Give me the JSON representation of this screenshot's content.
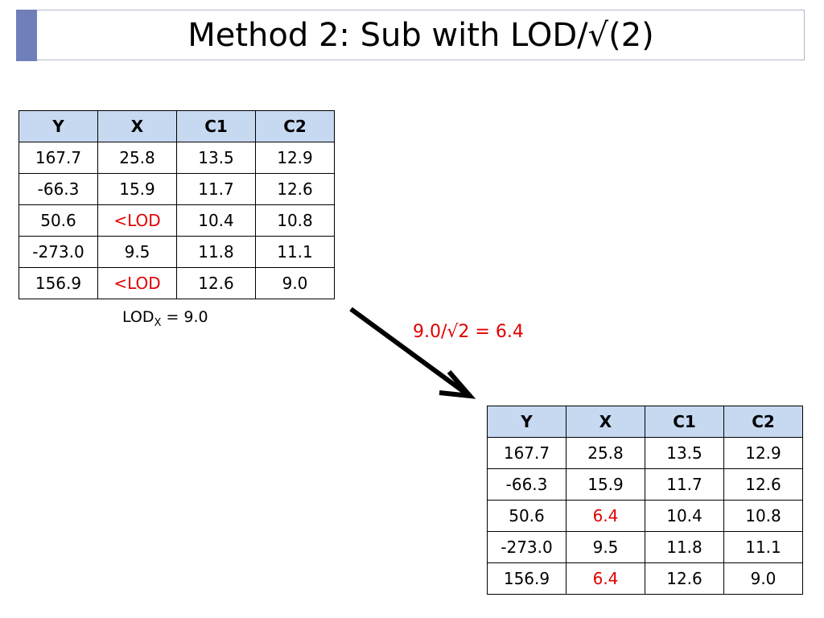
{
  "title": "Method 2: Sub with LOD/√(2)",
  "table_before": {
    "header": [
      "Y",
      "X",
      "C1",
      "C2"
    ],
    "rows": [
      [
        "167.7",
        "25.8",
        "13.5",
        "12.9"
      ],
      [
        "-66.3",
        "15.9",
        "11.7",
        "12.6"
      ],
      [
        "50.6",
        "<LOD",
        "10.4",
        "10.8"
      ],
      [
        "-273.0",
        "9.5",
        "11.8",
        "11.1"
      ],
      [
        "156.9",
        "<LOD",
        "12.6",
        "9.0"
      ]
    ]
  },
  "lod_note": {
    "base": "LOD",
    "subscript": "X",
    "rest": " = 9.0"
  },
  "annotation": "9.0/√2 = 6.4",
  "table_after": {
    "header": [
      "Y",
      "X",
      "C1",
      "C2"
    ],
    "rows": [
      [
        "167.7",
        "25.8",
        "13.5",
        "12.9"
      ],
      [
        "-66.3",
        "15.9",
        "11.7",
        "12.6"
      ],
      [
        "50.6",
        "6.4",
        "10.4",
        "10.8"
      ],
      [
        "-273.0",
        "9.5",
        "11.8",
        "11.1"
      ],
      [
        "156.9",
        "6.4",
        "12.6",
        "9.0"
      ]
    ]
  }
}
